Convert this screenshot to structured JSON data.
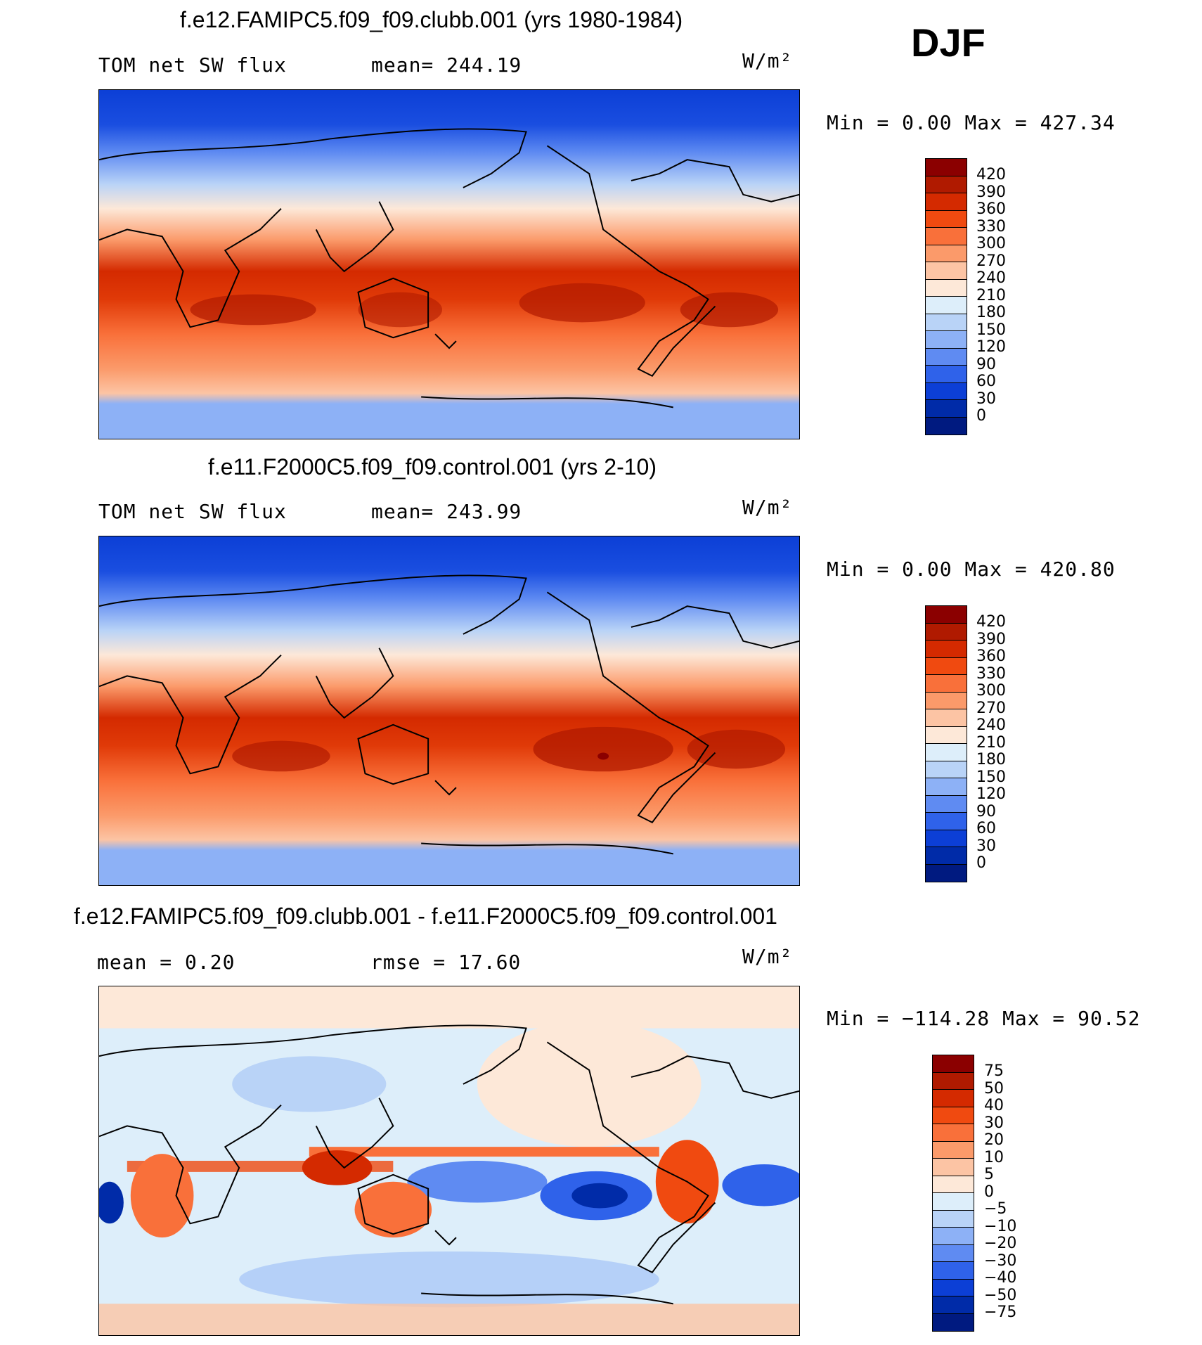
{
  "season": "DJF",
  "units": "W/m²",
  "panels": [
    {
      "title": "f.e12.FAMIPC5.f09_f09.clubb.001 (yrs 1980-1984)",
      "left_label": "TOM  net  SW  flux",
      "stat_label": "mean=  244.19",
      "minmax": "Min  =    0.00  Max  =  427.34"
    },
    {
      "title": "f.e11.F2000C5.f09_f09.control.001 (yrs 2-10)",
      "left_label": "TOM  net  SW  flux",
      "stat_label": "mean=  243.99",
      "minmax": "Min  =    0.00  Max  =  420.80"
    },
    {
      "title": "f.e12.FAMIPC5.f09_f09.clubb.001 - f.e11.F2000C5.f09_f09.control.001",
      "left_label": "mean  =    0.20",
      "stat_label": "rmse  =    17.60",
      "minmax": "Min  = −114.28  Max  =    90.52"
    }
  ],
  "colorbars": {
    "absolute": {
      "labels": [
        "420",
        "390",
        "360",
        "330",
        "300",
        "270",
        "240",
        "210",
        "180",
        "150",
        "120",
        "90",
        "60",
        "30",
        "0"
      ],
      "colors": [
        "#8b0000",
        "#b01a00",
        "#d42a00",
        "#f04a10",
        "#f9703a",
        "#fb9a6a",
        "#fcc4a4",
        "#fde8d8",
        "#ddeefa",
        "#b9d3f7",
        "#8db1f6",
        "#5f8bf2",
        "#2f62ea",
        "#0c3fd6",
        "#002ba8",
        "#001a80"
      ]
    },
    "difference": {
      "labels": [
        "75",
        "50",
        "40",
        "30",
        "20",
        "10",
        "5",
        "0",
        "−5",
        "−10",
        "−20",
        "−30",
        "−40",
        "−50",
        "−75"
      ],
      "colors": [
        "#8b0000",
        "#b01a00",
        "#d42a00",
        "#f04a10",
        "#f9703a",
        "#fb9a6a",
        "#fcc4a4",
        "#fde8d8",
        "#ddeefa",
        "#b9d3f7",
        "#8db1f6",
        "#5f8bf2",
        "#2f62ea",
        "#0c3fd6",
        "#002ba8",
        "#001a80"
      ]
    }
  }
}
